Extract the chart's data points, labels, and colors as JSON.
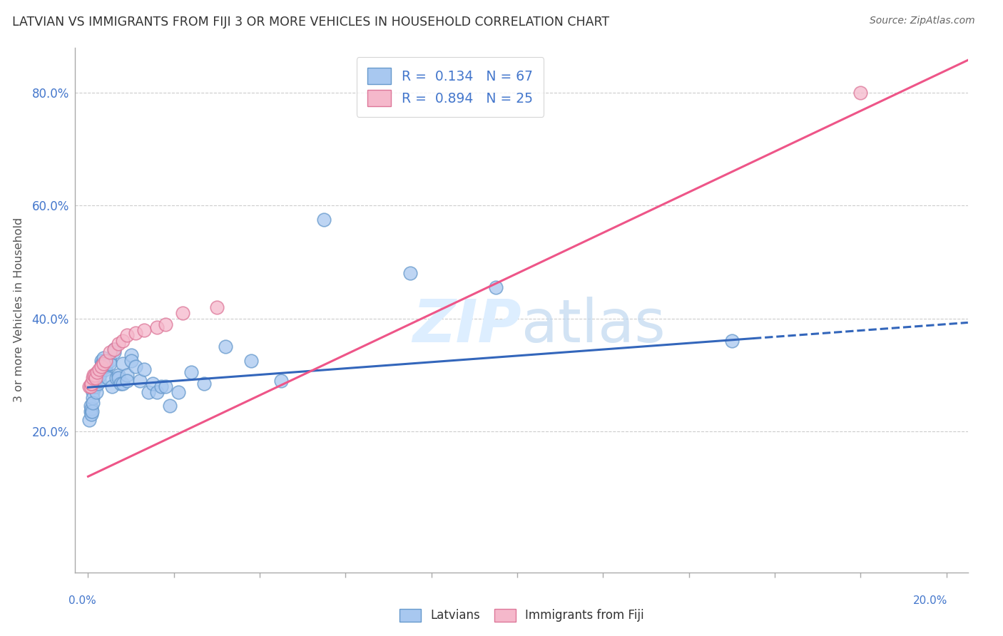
{
  "title": "LATVIAN VS IMMIGRANTS FROM FIJI 3 OR MORE VEHICLES IN HOUSEHOLD CORRELATION CHART",
  "source": "Source: ZipAtlas.com",
  "ylabel": "3 or more Vehicles in Household",
  "ytick_vals": [
    0.2,
    0.4,
    0.6,
    0.8
  ],
  "ytick_labels": [
    "20.0%",
    "40.0%",
    "60.0%",
    "80.0%"
  ],
  "xtick_vals": [
    0.0,
    0.02,
    0.04,
    0.06,
    0.08,
    0.1,
    0.12,
    0.14,
    0.16,
    0.18,
    0.2
  ],
  "xlim": [
    -0.003,
    0.205
  ],
  "ylim": [
    -0.05,
    0.88
  ],
  "latvian_R": 0.134,
  "latvian_N": 67,
  "fiji_R": 0.894,
  "fiji_N": 25,
  "latvian_color": "#a8c8f0",
  "fiji_color": "#f5b8cb",
  "latvian_edge_color": "#6699cc",
  "fiji_edge_color": "#dd7799",
  "latvian_line_color": "#3366bb",
  "fiji_line_color": "#ee5588",
  "watermark_color": "#ddeeff",
  "latvian_x": [
    0.0003,
    0.0005,
    0.0006,
    0.0007,
    0.0008,
    0.0009,
    0.001,
    0.001,
    0.001,
    0.0012,
    0.0013,
    0.0014,
    0.0015,
    0.0016,
    0.0017,
    0.0018,
    0.0019,
    0.002,
    0.002,
    0.0022,
    0.0023,
    0.0025,
    0.0026,
    0.0028,
    0.003,
    0.003,
    0.0032,
    0.0033,
    0.0035,
    0.004,
    0.004,
    0.0042,
    0.0045,
    0.005,
    0.005,
    0.0055,
    0.006,
    0.006,
    0.0065,
    0.007,
    0.007,
    0.0075,
    0.008,
    0.008,
    0.009,
    0.009,
    0.01,
    0.01,
    0.011,
    0.012,
    0.013,
    0.014,
    0.015,
    0.016,
    0.017,
    0.018,
    0.019,
    0.021,
    0.024,
    0.027,
    0.032,
    0.038,
    0.045,
    0.055,
    0.075,
    0.095,
    0.15
  ],
  "latvian_y": [
    0.22,
    0.245,
    0.235,
    0.24,
    0.23,
    0.235,
    0.27,
    0.26,
    0.25,
    0.28,
    0.285,
    0.29,
    0.29,
    0.29,
    0.285,
    0.28,
    0.27,
    0.3,
    0.29,
    0.285,
    0.295,
    0.3,
    0.29,
    0.3,
    0.325,
    0.315,
    0.32,
    0.32,
    0.33,
    0.31,
    0.315,
    0.32,
    0.295,
    0.325,
    0.32,
    0.28,
    0.345,
    0.34,
    0.295,
    0.3,
    0.295,
    0.285,
    0.32,
    0.285,
    0.3,
    0.29,
    0.335,
    0.325,
    0.315,
    0.29,
    0.31,
    0.27,
    0.285,
    0.27,
    0.28,
    0.28,
    0.245,
    0.27,
    0.305,
    0.285,
    0.35,
    0.325,
    0.29,
    0.575,
    0.48,
    0.455,
    0.36
  ],
  "fiji_x": [
    0.0003,
    0.0005,
    0.0007,
    0.0008,
    0.001,
    0.0012,
    0.0015,
    0.0018,
    0.002,
    0.0025,
    0.003,
    0.0035,
    0.004,
    0.005,
    0.006,
    0.007,
    0.008,
    0.009,
    0.011,
    0.013,
    0.016,
    0.018,
    0.022,
    0.03,
    0.18
  ],
  "fiji_y": [
    0.28,
    0.28,
    0.285,
    0.285,
    0.295,
    0.3,
    0.3,
    0.295,
    0.305,
    0.31,
    0.315,
    0.32,
    0.325,
    0.34,
    0.345,
    0.355,
    0.36,
    0.37,
    0.375,
    0.38,
    0.385,
    0.39,
    0.41,
    0.42,
    0.8
  ]
}
